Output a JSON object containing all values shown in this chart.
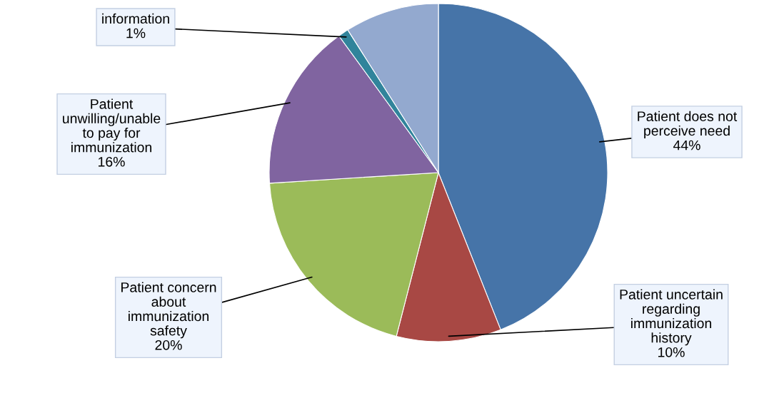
{
  "chart_data": {
    "type": "pie",
    "categories": [
      "Patient does not\nperceive need",
      "Patient uncertain\nregarding\nimmunization\nhistory",
      "Patient concern\nabout\nimmunization\nsafety",
      "Patient\nunwilling/unable\nto pay for\nimmunization",
      "information",
      null
    ],
    "values": [
      44,
      10,
      20,
      16,
      1,
      9
    ],
    "colors": [
      "#4674a8",
      "#a84844",
      "#9bbb59",
      "#8064a0",
      "#31849b",
      "#93a9cf"
    ],
    "value_labels": [
      "44%",
      "10%",
      "20%",
      "16%",
      "1%",
      null
    ]
  }
}
